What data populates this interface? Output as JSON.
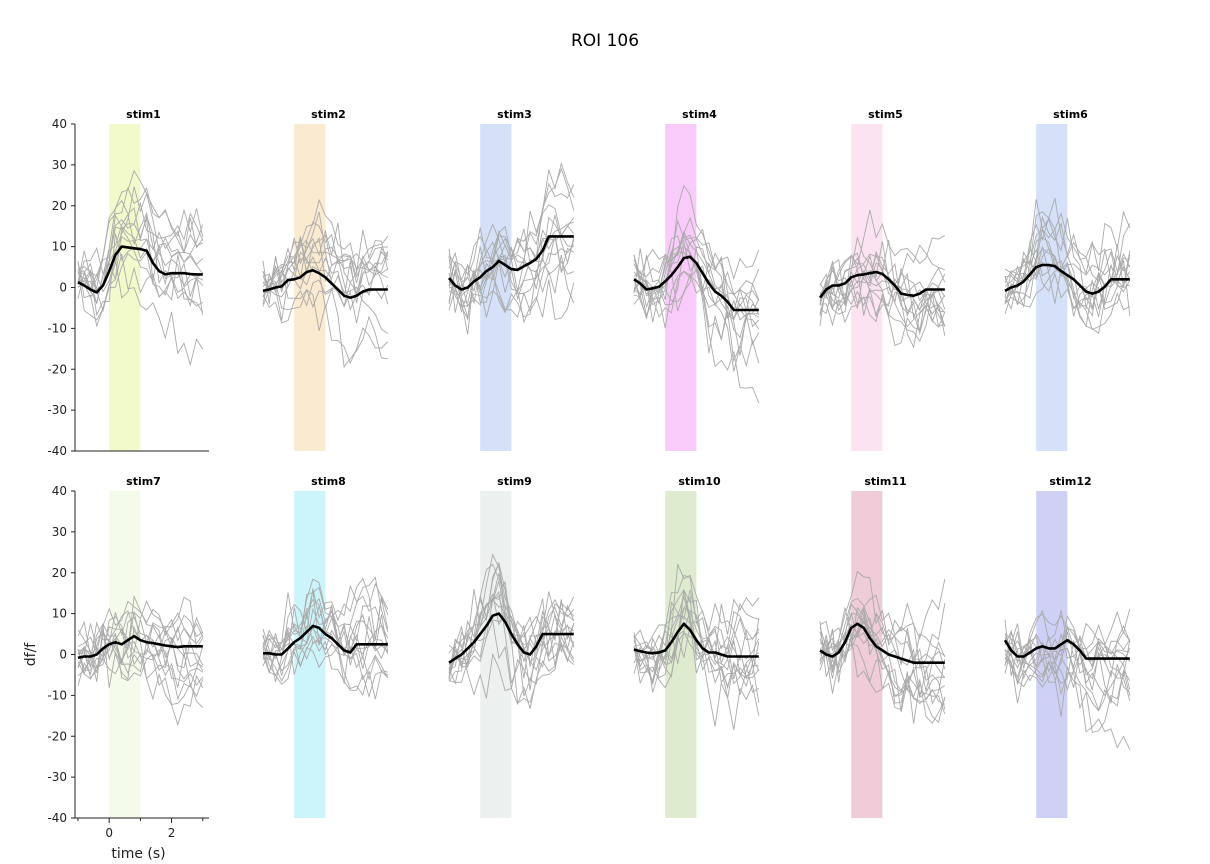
{
  "title": "ROI 106",
  "chart_data": {
    "type": "line",
    "suptitle": "ROI 106",
    "xlabel": "time (s)",
    "ylabel": "df/f",
    "ylim": [
      -40,
      40
    ],
    "xlim": [
      -1,
      3.2
    ],
    "y_ticks": [
      -40,
      -30,
      -20,
      -10,
      0,
      10,
      20,
      30,
      40
    ],
    "x_ticks": [
      0,
      2
    ],
    "stim_window": [
      0,
      1
    ],
    "x": [
      -1.0,
      -0.8,
      -0.6,
      -0.4,
      -0.2,
      0.0,
      0.2,
      0.4,
      0.6,
      0.8,
      1.0,
      1.2,
      1.4,
      1.6,
      1.8,
      2.0,
      2.2,
      2.4,
      2.6,
      2.8,
      3.0
    ],
    "grid": false,
    "trace_color": "#aaaaaa",
    "mean_color": "#000000",
    "panels": [
      {
        "name": "stim1",
        "color": "#e8f5a0",
        "mean": [
          1.3,
          0.5,
          -0.5,
          -1.2,
          0.5,
          4.0,
          8.0,
          10.0,
          9.8,
          9.6,
          9.4,
          9.0,
          6.0,
          4.0,
          3.2,
          3.5,
          3.5,
          3.5,
          3.3,
          3.2,
          3.2
        ]
      },
      {
        "name": "stim2",
        "color": "#f5d9a8",
        "mean": [
          -0.8,
          -0.5,
          0.0,
          0.3,
          1.8,
          2.0,
          2.5,
          3.8,
          4.2,
          3.5,
          2.5,
          1.0,
          -0.5,
          -2.0,
          -2.5,
          -2.0,
          -1.0,
          -0.5,
          -0.5,
          -0.5,
          -0.5
        ]
      },
      {
        "name": "stim3",
        "color": "#b0c8f2",
        "mean": [
          2.3,
          0.5,
          -0.5,
          0.0,
          1.5,
          2.5,
          4.0,
          5.0,
          6.5,
          5.5,
          4.5,
          4.3,
          5.2,
          6.0,
          7.0,
          9.0,
          12.5,
          12.5,
          12.5,
          12.5,
          12.5
        ]
      },
      {
        "name": "stim4",
        "color": "#f2a0f5",
        "mean": [
          2.0,
          1.0,
          -0.5,
          -0.2,
          0.2,
          1.5,
          3.0,
          5.0,
          7.2,
          7.5,
          6.0,
          3.5,
          1.0,
          -1.0,
          -2.0,
          -3.5,
          -5.5,
          -5.5,
          -5.5,
          -5.5,
          -5.5
        ]
      },
      {
        "name": "stim5",
        "color": "#f8cce8",
        "mean": [
          -2.5,
          -0.5,
          0.5,
          0.5,
          1.0,
          2.5,
          3.0,
          3.2,
          3.5,
          3.8,
          3.3,
          2.0,
          0.5,
          -1.5,
          -1.8,
          -2.0,
          -1.5,
          -0.5,
          -0.5,
          -0.5,
          -0.5
        ]
      },
      {
        "name": "stim6",
        "color": "#b0c8f2",
        "mean": [
          -0.8,
          0.0,
          0.5,
          1.5,
          3.2,
          5.0,
          5.5,
          5.5,
          5.2,
          4.0,
          3.0,
          2.0,
          0.5,
          -1.0,
          -1.5,
          -1.0,
          0.2,
          2.0,
          2.0,
          2.0,
          2.0
        ]
      },
      {
        "name": "stim7",
        "color": "#ebf7d8",
        "mean": [
          -0.8,
          -0.5,
          -0.5,
          0.0,
          1.5,
          2.5,
          3.0,
          2.5,
          3.5,
          4.5,
          3.5,
          3.0,
          2.8,
          2.5,
          2.2,
          2.0,
          1.8,
          2.0,
          2.0,
          2.0,
          2.0
        ]
      },
      {
        "name": "stim8",
        "color": "#a0ecf5",
        "mean": [
          0.3,
          0.3,
          0.0,
          0.0,
          1.5,
          3.0,
          4.0,
          5.5,
          7.0,
          6.5,
          5.0,
          4.0,
          2.5,
          1.0,
          0.5,
          2.5,
          2.5,
          2.5,
          2.5,
          2.5,
          2.5
        ]
      },
      {
        "name": "stim9",
        "color": "#dde3e0",
        "mean": [
          -2.0,
          -1.0,
          0.0,
          1.5,
          3.0,
          5.0,
          7.0,
          9.5,
          10.0,
          8.0,
          5.0,
          2.5,
          0.5,
          0.0,
          2.0,
          5.0,
          5.0,
          5.0,
          5.0,
          5.0,
          5.0
        ]
      },
      {
        "name": "stim10",
        "color": "#c2dba8",
        "mean": [
          1.2,
          0.8,
          0.5,
          0.3,
          0.5,
          1.0,
          3.0,
          5.5,
          7.5,
          6.0,
          3.5,
          1.5,
          0.5,
          0.5,
          0.0,
          -0.5,
          -0.5,
          -0.5,
          -0.5,
          -0.5,
          -0.5
        ]
      },
      {
        "name": "stim11",
        "color": "#e2a3b8",
        "mean": [
          1.0,
          0.0,
          -0.5,
          0.5,
          3.0,
          6.5,
          7.5,
          6.5,
          4.0,
          2.0,
          1.0,
          0.0,
          -0.5,
          -1.0,
          -1.5,
          -2.0,
          -2.0,
          -2.0,
          -2.0,
          -2.0,
          -2.0
        ]
      },
      {
        "name": "stim12",
        "color": "#a6aaed",
        "mean": [
          3.5,
          1.0,
          -0.5,
          -0.5,
          0.5,
          1.5,
          2.0,
          1.5,
          1.5,
          2.5,
          3.5,
          2.5,
          1.0,
          -1.0,
          -1.0,
          -1.0,
          -1.0,
          -1.0,
          -1.0,
          -1.0,
          -1.0
        ]
      }
    ]
  }
}
